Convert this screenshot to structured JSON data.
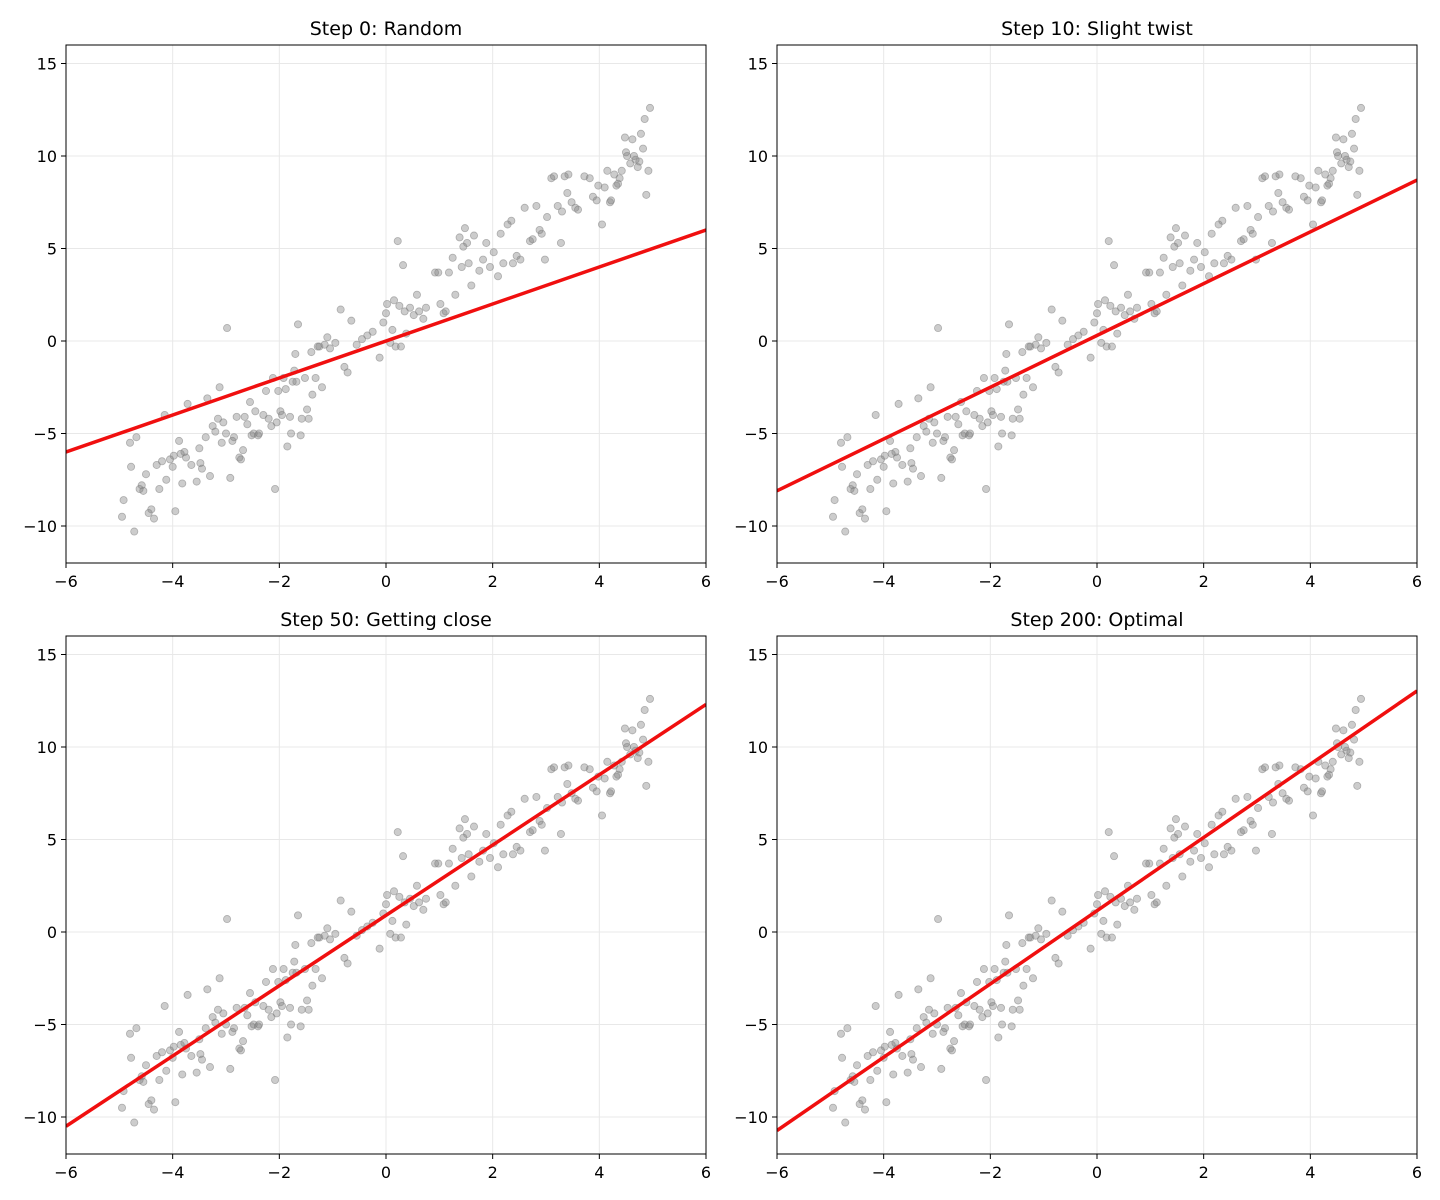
{
  "style": {
    "point_color": "#808080",
    "line_color": "#f00f0f",
    "grid_color": "#e8e8e8",
    "grid": true
  },
  "chart_data": [
    {
      "type": "scatter",
      "title": "Step 0: Random",
      "xlim": [
        -6,
        6
      ],
      "ylim": [
        -12,
        16
      ],
      "xticks": [
        -6,
        -4,
        -2,
        0,
        2,
        4,
        6
      ],
      "yticks": [
        -10,
        -5,
        0,
        5,
        10,
        15
      ],
      "line": {
        "slope": 1.0,
        "intercept": 0.0
      }
    },
    {
      "type": "scatter",
      "title": "Step 10: Slight twist",
      "xlim": [
        -6,
        6
      ],
      "ylim": [
        -12,
        16
      ],
      "xticks": [
        -6,
        -4,
        -2,
        0,
        2,
        4,
        6
      ],
      "yticks": [
        -10,
        -5,
        0,
        5,
        10,
        15
      ],
      "line": {
        "slope": 1.4,
        "intercept": 0.3
      }
    },
    {
      "type": "scatter",
      "title": "Step 50: Getting close",
      "xlim": [
        -6,
        6
      ],
      "ylim": [
        -12,
        16
      ],
      "xticks": [
        -6,
        -4,
        -2,
        0,
        2,
        4,
        6
      ],
      "yticks": [
        -10,
        -5,
        0,
        5,
        10,
        15
      ],
      "line": {
        "slope": 1.9,
        "intercept": 0.9
      }
    },
    {
      "type": "scatter",
      "title": "Step 200: Optimal",
      "xlim": [
        -6,
        6
      ],
      "ylim": [
        -12,
        16
      ],
      "xticks": [
        -6,
        -4,
        -2,
        0,
        2,
        4,
        6
      ],
      "yticks": [
        -10,
        -5,
        0,
        5,
        10,
        15
      ],
      "line": {
        "slope": 1.98,
        "intercept": 1.15
      }
    }
  ],
  "points": [
    [
      -4.95,
      -9.5
    ],
    [
      -4.92,
      -8.6
    ],
    [
      -4.8,
      -5.5
    ],
    [
      -4.78,
      -6.8
    ],
    [
      -4.72,
      -10.3
    ],
    [
      -4.68,
      -5.2
    ],
    [
      -4.62,
      -8.0
    ],
    [
      -4.58,
      -7.8
    ],
    [
      -4.55,
      -8.1
    ],
    [
      -4.5,
      -7.2
    ],
    [
      -4.45,
      -9.3
    ],
    [
      -4.4,
      -9.1
    ],
    [
      -4.35,
      -9.6
    ],
    [
      -4.3,
      -6.7
    ],
    [
      -4.25,
      -8.0
    ],
    [
      -4.2,
      -6.5
    ],
    [
      -4.15,
      -4.0
    ],
    [
      -4.12,
      -7.5
    ],
    [
      -4.05,
      -6.4
    ],
    [
      -4.0,
      -6.8
    ],
    [
      -3.98,
      -6.2
    ],
    [
      -3.95,
      -9.2
    ],
    [
      -3.88,
      -5.4
    ],
    [
      -3.85,
      -6.1
    ],
    [
      -3.82,
      -7.7
    ],
    [
      -3.78,
      -6.0
    ],
    [
      -3.75,
      -6.3
    ],
    [
      -3.72,
      -3.4
    ],
    [
      -3.65,
      -6.7
    ],
    [
      -3.55,
      -7.6
    ],
    [
      -3.5,
      -5.8
    ],
    [
      -3.48,
      -6.6
    ],
    [
      -3.45,
      -6.9
    ],
    [
      -3.38,
      -5.2
    ],
    [
      -3.35,
      -3.1
    ],
    [
      -3.3,
      -7.3
    ],
    [
      -3.25,
      -4.6
    ],
    [
      -3.2,
      -4.9
    ],
    [
      -3.15,
      -4.2
    ],
    [
      -3.12,
      -2.5
    ],
    [
      -3.08,
      -5.5
    ],
    [
      -3.05,
      -4.4
    ],
    [
      -3.0,
      -5.0
    ],
    [
      -2.98,
      0.7
    ],
    [
      -2.92,
      -7.4
    ],
    [
      -2.88,
      -5.4
    ],
    [
      -2.85,
      -5.2
    ],
    [
      -2.8,
      -4.1
    ],
    [
      -2.75,
      -6.3
    ],
    [
      -2.72,
      -6.4
    ],
    [
      -2.68,
      -5.9
    ],
    [
      -2.65,
      -4.1
    ],
    [
      -2.6,
      -4.5
    ],
    [
      -2.55,
      -3.3
    ],
    [
      -2.52,
      -5.1
    ],
    [
      -2.48,
      -5.0
    ],
    [
      -2.45,
      -3.8
    ],
    [
      -2.4,
      -5.1
    ],
    [
      -2.38,
      -5.0
    ],
    [
      -2.3,
      -4.0
    ],
    [
      -2.25,
      -2.7
    ],
    [
      -2.2,
      -4.2
    ],
    [
      -2.15,
      -4.6
    ],
    [
      -2.12,
      -2.0
    ],
    [
      -2.08,
      -8.0
    ],
    [
      -2.05,
      -4.4
    ],
    [
      -2.02,
      -2.7
    ],
    [
      -1.98,
      -3.8
    ],
    [
      -1.95,
      -4.0
    ],
    [
      -1.92,
      -2.0
    ],
    [
      -1.88,
      -2.6
    ],
    [
      -1.85,
      -5.7
    ],
    [
      -1.8,
      -4.1
    ],
    [
      -1.78,
      -5.0
    ],
    [
      -1.75,
      -2.2
    ],
    [
      -1.72,
      -1.6
    ],
    [
      -1.7,
      -0.7
    ],
    [
      -1.68,
      -2.2
    ],
    [
      -1.65,
      0.9
    ],
    [
      -1.6,
      -5.1
    ],
    [
      -1.58,
      -4.2
    ],
    [
      -1.52,
      -2.0
    ],
    [
      -1.48,
      -3.7
    ],
    [
      -1.45,
      -4.2
    ],
    [
      -1.4,
      -0.6
    ],
    [
      -1.38,
      -2.9
    ],
    [
      -1.32,
      -2.0
    ],
    [
      -1.28,
      -0.3
    ],
    [
      -1.25,
      -0.3
    ],
    [
      -1.2,
      -2.5
    ],
    [
      -1.15,
      -0.2
    ],
    [
      -1.1,
      0.2
    ],
    [
      -1.05,
      -0.4
    ],
    [
      -0.95,
      -0.1
    ],
    [
      -0.85,
      1.7
    ],
    [
      -0.78,
      -1.4
    ],
    [
      -0.72,
      -1.7
    ],
    [
      -0.65,
      1.1
    ],
    [
      -0.55,
      -0.2
    ],
    [
      -0.45,
      0.1
    ],
    [
      -0.35,
      0.3
    ],
    [
      -0.25,
      0.5
    ],
    [
      -0.12,
      -0.9
    ],
    [
      -0.05,
      1.0
    ],
    [
      0.0,
      1.5
    ],
    [
      0.02,
      2.0
    ],
    [
      0.08,
      -0.1
    ],
    [
      0.12,
      0.6
    ],
    [
      0.15,
      2.2
    ],
    [
      0.18,
      -0.3
    ],
    [
      0.22,
      5.4
    ],
    [
      0.25,
      1.9
    ],
    [
      0.28,
      -0.3
    ],
    [
      0.32,
      4.1
    ],
    [
      0.35,
      1.6
    ],
    [
      0.38,
      0.4
    ],
    [
      0.45,
      1.8
    ],
    [
      0.52,
      1.4
    ],
    [
      0.58,
      2.5
    ],
    [
      0.62,
      1.6
    ],
    [
      0.7,
      1.2
    ],
    [
      0.75,
      1.8
    ],
    [
      0.92,
      3.7
    ],
    [
      0.98,
      3.7
    ],
    [
      1.02,
      2.0
    ],
    [
      1.08,
      1.5
    ],
    [
      1.12,
      1.6
    ],
    [
      1.18,
      3.7
    ],
    [
      1.25,
      4.5
    ],
    [
      1.3,
      2.5
    ],
    [
      1.38,
      5.6
    ],
    [
      1.42,
      4.0
    ],
    [
      1.45,
      5.1
    ],
    [
      1.48,
      6.1
    ],
    [
      1.52,
      5.3
    ],
    [
      1.55,
      4.2
    ],
    [
      1.6,
      3.0
    ],
    [
      1.65,
      5.7
    ],
    [
      1.75,
      3.8
    ],
    [
      1.82,
      4.4
    ],
    [
      1.88,
      5.3
    ],
    [
      1.95,
      4.0
    ],
    [
      2.02,
      4.8
    ],
    [
      2.1,
      3.5
    ],
    [
      2.15,
      5.8
    ],
    [
      2.2,
      4.2
    ],
    [
      2.28,
      6.3
    ],
    [
      2.35,
      6.5
    ],
    [
      2.38,
      4.2
    ],
    [
      2.45,
      4.6
    ],
    [
      2.52,
      4.4
    ],
    [
      2.6,
      7.2
    ],
    [
      2.7,
      5.4
    ],
    [
      2.75,
      5.5
    ],
    [
      2.82,
      7.3
    ],
    [
      2.88,
      6.0
    ],
    [
      2.92,
      5.8
    ],
    [
      2.98,
      4.4
    ],
    [
      3.02,
      6.7
    ],
    [
      3.1,
      8.8
    ],
    [
      3.15,
      8.9
    ],
    [
      3.22,
      7.3
    ],
    [
      3.28,
      5.3
    ],
    [
      3.3,
      7.0
    ],
    [
      3.35,
      8.9
    ],
    [
      3.4,
      8.0
    ],
    [
      3.42,
      9.0
    ],
    [
      3.48,
      7.5
    ],
    [
      3.55,
      7.2
    ],
    [
      3.6,
      7.1
    ],
    [
      3.72,
      8.9
    ],
    [
      3.82,
      8.8
    ],
    [
      3.88,
      7.8
    ],
    [
      3.95,
      7.6
    ],
    [
      3.98,
      8.4
    ],
    [
      4.05,
      6.3
    ],
    [
      4.1,
      8.3
    ],
    [
      4.15,
      9.2
    ],
    [
      4.2,
      7.5
    ],
    [
      4.22,
      7.6
    ],
    [
      4.28,
      9.0
    ],
    [
      4.32,
      8.4
    ],
    [
      4.35,
      8.5
    ],
    [
      4.38,
      8.8
    ],
    [
      4.42,
      9.2
    ],
    [
      4.48,
      11.0
    ],
    [
      4.5,
      10.2
    ],
    [
      4.52,
      10.0
    ],
    [
      4.58,
      9.6
    ],
    [
      4.62,
      10.9
    ],
    [
      4.65,
      10.0
    ],
    [
      4.68,
      9.8
    ],
    [
      4.72,
      9.4
    ],
    [
      4.75,
      9.7
    ],
    [
      4.78,
      11.2
    ],
    [
      4.82,
      10.4
    ],
    [
      4.85,
      12.0
    ],
    [
      4.88,
      7.9
    ],
    [
      4.92,
      9.2
    ],
    [
      4.95,
      12.6
    ]
  ]
}
